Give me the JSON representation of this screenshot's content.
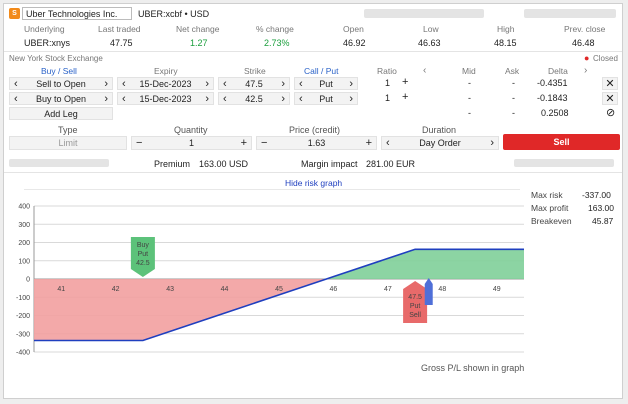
{
  "header": {
    "instrument": "Uber Technologies Inc.",
    "symbol_info": "UBER:xcbf • USD"
  },
  "quote": {
    "cols": [
      {
        "label": "Underlying",
        "value": "UBER:xnys"
      },
      {
        "label": "Last traded",
        "value": "47.75"
      },
      {
        "label": "Net change",
        "value": "1.27"
      },
      {
        "label": "% change",
        "value": "2.73%"
      },
      {
        "label": "Open",
        "value": "46.92"
      },
      {
        "label": "Low",
        "value": "46.63"
      },
      {
        "label": "High",
        "value": "48.15"
      },
      {
        "label": "Prev. close",
        "value": "46.48"
      }
    ]
  },
  "exchange": "New York Stock Exchange",
  "status": "Closed",
  "legs_header": {
    "buy_sell": "Buy / Sell",
    "expiry": "Expiry",
    "strike": "Strike",
    "call_put": "Call / Put",
    "ratio": "Ratio",
    "mid": "Mid",
    "ask": "Ask",
    "delta": "Delta"
  },
  "legs": [
    {
      "side": "Sell to Open",
      "expiry": "15-Dec-2023",
      "strike": "47.5",
      "type": "Put",
      "ratio": "1",
      "mid": "-",
      "ask": "-",
      "delta": "-0.4351"
    },
    {
      "side": "Buy to Open",
      "expiry": "15-Dec-2023",
      "strike": "42.5",
      "type": "Put",
      "ratio": "1",
      "mid": "-",
      "ask": "-",
      "delta": "-0.1843"
    }
  ],
  "totals": {
    "mid": "-",
    "ask": "-",
    "delta": "0.2508"
  },
  "add_leg": "Add Leg",
  "order": {
    "type_label": "Type",
    "type_value": "Limit",
    "qty_label": "Quantity",
    "qty_value": "1",
    "price_label": "Price (credit)",
    "price_value": "1.63",
    "duration_label": "Duration",
    "duration_value": "Day Order",
    "sell_label": "Sell",
    "minus": "−",
    "plus": "+"
  },
  "summary": {
    "premium_label": "Premium",
    "premium_value": "163.00 USD",
    "margin_label": "Margin impact",
    "margin_value": "281.00 EUR"
  },
  "hide_risk": "Hide risk graph",
  "risk": {
    "max_risk_label": "Max risk",
    "max_risk_value": "-337.00",
    "max_profit_label": "Max profit",
    "max_profit_value": "163.00",
    "breakeven_label": "Breakeven",
    "breakeven_value": "45.87"
  },
  "footer_note": "Gross P/L shown in graph",
  "colors": {
    "profit": "#7fcf99",
    "loss": "#f2a0a0",
    "line": "#1f3fbf",
    "sell": "#e02828",
    "buy_marker": "#5cc27a",
    "sell_marker": "#e86a6a"
  },
  "chart_data": {
    "type": "area",
    "x": [
      40.5,
      41,
      42,
      42.5,
      43,
      44,
      45,
      45.87,
      46,
      47,
      47.5,
      48,
      49,
      49.5
    ],
    "y": [
      -337,
      -337,
      -337,
      -337,
      -287,
      -187,
      -87,
      0,
      13,
      113,
      163,
      163,
      163,
      163
    ],
    "xlim": [
      40.5,
      49.5
    ],
    "ylim": [
      -400,
      400
    ],
    "xticks": [
      41,
      42,
      43,
      44,
      45,
      46,
      47,
      48,
      49
    ],
    "yticks": [
      400,
      300,
      200,
      100,
      0,
      -100,
      -200,
      -300,
      -400
    ],
    "markers": [
      {
        "label_lines": [
          "Buy",
          "Put",
          "42.5"
        ],
        "x": 42.5,
        "color": "buy"
      },
      {
        "label_lines": [
          "47.5",
          "Put",
          "Sell"
        ],
        "x": 47.5,
        "color": "sell"
      }
    ],
    "last_price_x": 47.75
  }
}
